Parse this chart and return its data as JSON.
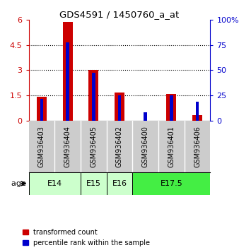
{
  "title": "GDS4591 / 1450760_a_at",
  "samples": [
    "GSM936403",
    "GSM936404",
    "GSM936405",
    "GSM936402",
    "GSM936400",
    "GSM936401",
    "GSM936406"
  ],
  "red_values": [
    1.4,
    5.9,
    3.0,
    1.65,
    0.0,
    1.6,
    0.3
  ],
  "blue_values": [
    1.3,
    4.65,
    2.85,
    1.5,
    0.5,
    1.5,
    1.1
  ],
  "age_groups": [
    {
      "label": "E14",
      "start": 0,
      "end": 2,
      "color": "#ccffcc"
    },
    {
      "label": "E15",
      "start": 2,
      "end": 3,
      "color": "#ccffcc"
    },
    {
      "label": "E16",
      "start": 3,
      "end": 4,
      "color": "#ccffcc"
    },
    {
      "label": "E17.5",
      "start": 4,
      "end": 7,
      "color": "#44ee44"
    }
  ],
  "left_ylim": [
    0,
    6
  ],
  "left_yticks": [
    0,
    1.5,
    3.0,
    4.5,
    6.0
  ],
  "left_ytick_labels": [
    "0",
    "1.5",
    "3",
    "4.5",
    "6"
  ],
  "right_ytick_labels": [
    "0",
    "25",
    "50",
    "75",
    "100%"
  ],
  "red_color": "#cc0000",
  "blue_color": "#0000cc",
  "gray_bg": "#cccccc",
  "legend_red": "transformed count",
  "legend_blue": "percentile rank within the sample",
  "age_label": "age",
  "left_color": "#cc0000",
  "right_color": "#0000cc"
}
